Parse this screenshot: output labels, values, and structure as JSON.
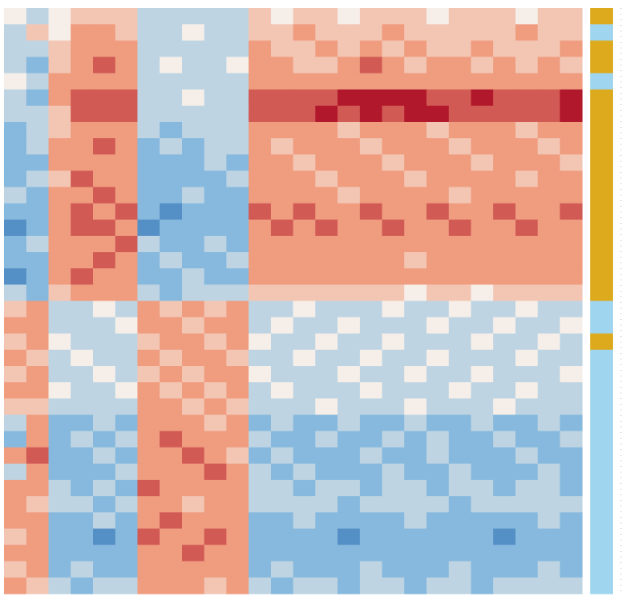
{
  "chart_data": {
    "type": "heatmap",
    "values": [
      [
        0,
        -1,
        0,
        1,
        1,
        1,
        -1,
        -1,
        -1,
        -1,
        -1,
        1,
        0,
        1,
        1,
        0,
        1,
        1,
        1,
        0,
        1,
        1,
        1,
        0,
        1,
        1
      ],
      [
        -1,
        1,
        0,
        2,
        2,
        1,
        -1,
        -1,
        0,
        -1,
        -1,
        1,
        1,
        2,
        1,
        1,
        1,
        2,
        1,
        1,
        1,
        1,
        1,
        2,
        1,
        1
      ],
      [
        -1,
        -1,
        1,
        2,
        2,
        2,
        -1,
        -1,
        -1,
        -1,
        -1,
        2,
        1,
        1,
        2,
        1,
        2,
        1,
        2,
        1,
        1,
        2,
        1,
        1,
        1,
        2
      ],
      [
        -1,
        -2,
        1,
        2,
        3,
        2,
        -1,
        0,
        -1,
        -1,
        0,
        2,
        2,
        1,
        1,
        2,
        3,
        2,
        1,
        2,
        2,
        1,
        2,
        1,
        2,
        1
      ],
      [
        0,
        -1,
        2,
        2,
        2,
        2,
        -1,
        -1,
        -1,
        -1,
        -1,
        2,
        2,
        2,
        2,
        2,
        2,
        2,
        2,
        2,
        2,
        2,
        2,
        2,
        2,
        2
      ],
      [
        -1,
        -2,
        2,
        3,
        3,
        3,
        -1,
        -1,
        0,
        -1,
        -1,
        3,
        3,
        3,
        3,
        4,
        4,
        4,
        4,
        3,
        3,
        4,
        3,
        3,
        3,
        4
      ],
      [
        -1,
        -1,
        1,
        3,
        3,
        3,
        -1,
        -1,
        -1,
        -1,
        -1,
        3,
        3,
        3,
        4,
        3,
        4,
        3,
        4,
        4,
        3,
        3,
        3,
        3,
        3,
        4
      ],
      [
        -2,
        -1,
        1,
        2,
        2,
        2,
        -1,
        -2,
        -1,
        -1,
        -1,
        2,
        2,
        2,
        2,
        1,
        2,
        2,
        2,
        1,
        2,
        2,
        2,
        1,
        2,
        2
      ],
      [
        -2,
        -1,
        2,
        2,
        3,
        2,
        -2,
        -1,
        -2,
        -1,
        -1,
        2,
        1,
        2,
        2,
        2,
        1,
        2,
        2,
        2,
        1,
        2,
        2,
        2,
        1,
        2
      ],
      [
        -2,
        -2,
        2,
        2,
        2,
        2,
        -2,
        -2,
        -2,
        -1,
        -2,
        2,
        2,
        1,
        2,
        2,
        2,
        1,
        2,
        2,
        2,
        1,
        2,
        2,
        2,
        1
      ],
      [
        -2,
        -1,
        1,
        3,
        2,
        2,
        -2,
        -2,
        -2,
        -2,
        -1,
        2,
        2,
        2,
        1,
        2,
        2,
        2,
        1,
        2,
        2,
        2,
        2,
        1,
        2,
        2
      ],
      [
        -1,
        -2,
        2,
        2,
        3,
        2,
        -2,
        -2,
        -1,
        -2,
        -2,
        2,
        2,
        2,
        2,
        1,
        2,
        2,
        2,
        2,
        1,
        2,
        2,
        2,
        2,
        2
      ],
      [
        -2,
        -2,
        2,
        3,
        2,
        3,
        -2,
        -3,
        -2,
        -2,
        -2,
        3,
        2,
        3,
        2,
        2,
        3,
        2,
        2,
        3,
        2,
        2,
        3,
        2,
        2,
        3
      ],
      [
        -3,
        -2,
        2,
        3,
        3,
        2,
        -3,
        -2,
        -2,
        -2,
        -2,
        2,
        3,
        2,
        3,
        2,
        2,
        3,
        2,
        2,
        3,
        2,
        2,
        3,
        2,
        2
      ],
      [
        -2,
        -1,
        2,
        2,
        2,
        3,
        -1,
        -2,
        -2,
        -1,
        -2,
        2,
        2,
        2,
        2,
        2,
        2,
        2,
        2,
        2,
        2,
        2,
        2,
        2,
        2,
        2
      ],
      [
        -2,
        -2,
        2,
        2,
        3,
        2,
        -2,
        -1,
        -2,
        -2,
        -1,
        2,
        2,
        2,
        2,
        2,
        2,
        2,
        1,
        2,
        2,
        2,
        2,
        2,
        2,
        2
      ],
      [
        -3,
        -2,
        2,
        3,
        2,
        2,
        -2,
        -2,
        -1,
        -2,
        -2,
        2,
        2,
        2,
        2,
        2,
        2,
        2,
        2,
        2,
        2,
        2,
        2,
        2,
        2,
        2
      ],
      [
        -1,
        -2,
        1,
        2,
        2,
        2,
        -1,
        -2,
        -1,
        -1,
        -1,
        1,
        1,
        1,
        1,
        1,
        1,
        1,
        0,
        1,
        1,
        0,
        1,
        1,
        1,
        1
      ],
      [
        1,
        2,
        -1,
        -1,
        0,
        -1,
        2,
        1,
        2,
        1,
        2,
        -1,
        -1,
        0,
        -1,
        -1,
        -1,
        0,
        -1,
        -1,
        0,
        -1,
        -1,
        0,
        -1,
        -1
      ],
      [
        2,
        2,
        -1,
        -1,
        -1,
        0,
        2,
        2,
        1,
        2,
        2,
        -1,
        0,
        -1,
        -1,
        0,
        -1,
        -1,
        -1,
        0,
        -1,
        -1,
        0,
        -1,
        -1,
        0
      ],
      [
        1,
        2,
        0,
        -1,
        -1,
        -1,
        1,
        2,
        2,
        1,
        2,
        0,
        -1,
        -1,
        0,
        -1,
        -1,
        0,
        -1,
        -1,
        -1,
        0,
        -1,
        -1,
        0,
        -1
      ],
      [
        2,
        1,
        -1,
        0,
        -1,
        -1,
        2,
        1,
        2,
        2,
        1,
        -1,
        -1,
        0,
        -1,
        -1,
        0,
        -1,
        -1,
        0,
        -1,
        -1,
        -1,
        0,
        -1,
        -1
      ],
      [
        1,
        2,
        -1,
        -1,
        0,
        -1,
        1,
        2,
        1,
        2,
        2,
        0,
        -1,
        -1,
        -1,
        0,
        -1,
        -1,
        0,
        -1,
        -1,
        0,
        -1,
        -1,
        -1,
        0
      ],
      [
        2,
        2,
        0,
        -1,
        -1,
        0,
        2,
        1,
        2,
        1,
        2,
        -1,
        0,
        -1,
        -1,
        -1,
        0,
        -1,
        -1,
        -1,
        0,
        -1,
        -1,
        0,
        -1,
        -1
      ],
      [
        1,
        1,
        -1,
        -1,
        -1,
        -1,
        2,
        2,
        1,
        2,
        1,
        -1,
        -1,
        -1,
        0,
        -1,
        -1,
        -1,
        0,
        -1,
        -1,
        -1,
        0,
        -1,
        -1,
        -1
      ],
      [
        -1,
        2,
        -2,
        -2,
        -1,
        -2,
        2,
        2,
        2,
        1,
        2,
        -2,
        -1,
        -2,
        -2,
        -1,
        -2,
        -2,
        -1,
        -2,
        -2,
        -1,
        -2,
        -2,
        -1,
        -2
      ],
      [
        -2,
        2,
        -2,
        -1,
        -2,
        -1,
        2,
        3,
        2,
        2,
        2,
        -1,
        -2,
        -2,
        -1,
        -2,
        -2,
        -1,
        -2,
        -1,
        -2,
        -2,
        -1,
        -2,
        -2,
        -1
      ],
      [
        2,
        3,
        -2,
        -2,
        -1,
        -2,
        2,
        2,
        3,
        2,
        1,
        -2,
        -1,
        -2,
        -2,
        -2,
        -1,
        -2,
        -2,
        -1,
        -2,
        -2,
        -2,
        -1,
        -2,
        -2
      ],
      [
        -1,
        2,
        -2,
        -2,
        -2,
        -1,
        2,
        2,
        2,
        3,
        2,
        -1,
        -2,
        -1,
        -2,
        -2,
        -2,
        -1,
        -2,
        -2,
        -1,
        -2,
        -2,
        -2,
        -1,
        -2
      ],
      [
        2,
        2,
        -1,
        -2,
        -1,
        -2,
        3,
        2,
        2,
        2,
        2,
        -1,
        -1,
        -2,
        -1,
        -1,
        -2,
        -1,
        -1,
        -2,
        -1,
        -1,
        -2,
        -1,
        -1,
        -2
      ],
      [
        2,
        1,
        -1,
        -1,
        -2,
        -1,
        2,
        2,
        1,
        2,
        2,
        -1,
        -1,
        -1,
        -1,
        -2,
        -1,
        -1,
        -1,
        -1,
        -2,
        -1,
        -1,
        -1,
        -1,
        -1
      ],
      [
        2,
        2,
        -2,
        -2,
        -1,
        -2,
        2,
        3,
        2,
        2,
        2,
        -2,
        -2,
        -1,
        -2,
        -2,
        -2,
        -2,
        -1,
        -2,
        -2,
        -2,
        -2,
        -2,
        -1,
        -2
      ],
      [
        1,
        2,
        -2,
        -2,
        -3,
        -2,
        3,
        2,
        2,
        3,
        2,
        -2,
        -2,
        -2,
        -2,
        -3,
        -2,
        -2,
        -2,
        -2,
        -2,
        -2,
        -3,
        -2,
        -2,
        -2
      ],
      [
        2,
        2,
        -2,
        -2,
        -2,
        -2,
        2,
        2,
        3,
        2,
        2,
        -2,
        -2,
        -2,
        -2,
        -2,
        -2,
        -2,
        -2,
        -2,
        -2,
        -2,
        -2,
        -2,
        -2,
        -2
      ],
      [
        1,
        2,
        -2,
        -1,
        -2,
        -2,
        2,
        2,
        2,
        2,
        2,
        -2,
        -1,
        -2,
        -2,
        -2,
        -1,
        -2,
        -2,
        -2,
        -1,
        -2,
        -2,
        -2,
        -1,
        -2
      ],
      [
        2,
        1,
        -1,
        -2,
        -1,
        -1,
        2,
        2,
        2,
        1,
        2,
        -1,
        -2,
        -1,
        -1,
        -2,
        -1,
        -1,
        -2,
        -1,
        -1,
        -2,
        -1,
        -1,
        -1,
        -1
      ]
    ],
    "row_groups": [
      0,
      1,
      0,
      0,
      1,
      0,
      0,
      0,
      0,
      0,
      0,
      0,
      0,
      0,
      0,
      0,
      0,
      0,
      1,
      1,
      0,
      1,
      1,
      1,
      1,
      1,
      1,
      1,
      1,
      1,
      1,
      1,
      1,
      1,
      1,
      1
    ],
    "group_colors": [
      "#dcaa1c",
      "#9fd5ee"
    ]
  }
}
